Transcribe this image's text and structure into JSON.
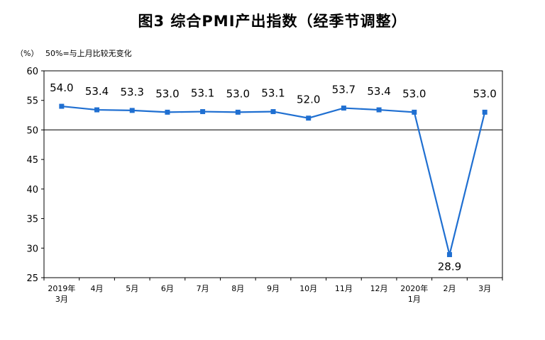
{
  "chart_data": {
    "type": "line",
    "title": "图3 综合PMI产出指数（经季节调整）",
    "unit_label": "（%）",
    "note": "50%=与上月比较无变化",
    "categories": [
      [
        "2019年",
        "3月"
      ],
      [
        "4月"
      ],
      [
        "5月"
      ],
      [
        "6月"
      ],
      [
        "7月"
      ],
      [
        "8月"
      ],
      [
        "9月"
      ],
      [
        "10月"
      ],
      [
        "11月"
      ],
      [
        "12月"
      ],
      [
        "2020年",
        "1月"
      ],
      [
        "2月"
      ],
      [
        "3月"
      ]
    ],
    "series": [
      {
        "values": [
          54.0,
          53.4,
          53.3,
          53.0,
          53.1,
          53.0,
          53.1,
          52.0,
          53.7,
          53.4,
          53.0,
          28.9,
          53.0
        ]
      }
    ],
    "data_labels": [
      "54.0",
      "53.4",
      "53.3",
      "53.0",
      "53.1",
      "53.0",
      "53.1",
      "52.0",
      "53.7",
      "53.4",
      "53.0",
      "28.9",
      "53.0"
    ],
    "ylim": [
      25,
      60
    ],
    "yticks": [
      25,
      30,
      35,
      40,
      45,
      50,
      55,
      60
    ],
    "reference_line": 50,
    "line_color": "#1f6fd1",
    "legend": "none",
    "grid": false
  }
}
